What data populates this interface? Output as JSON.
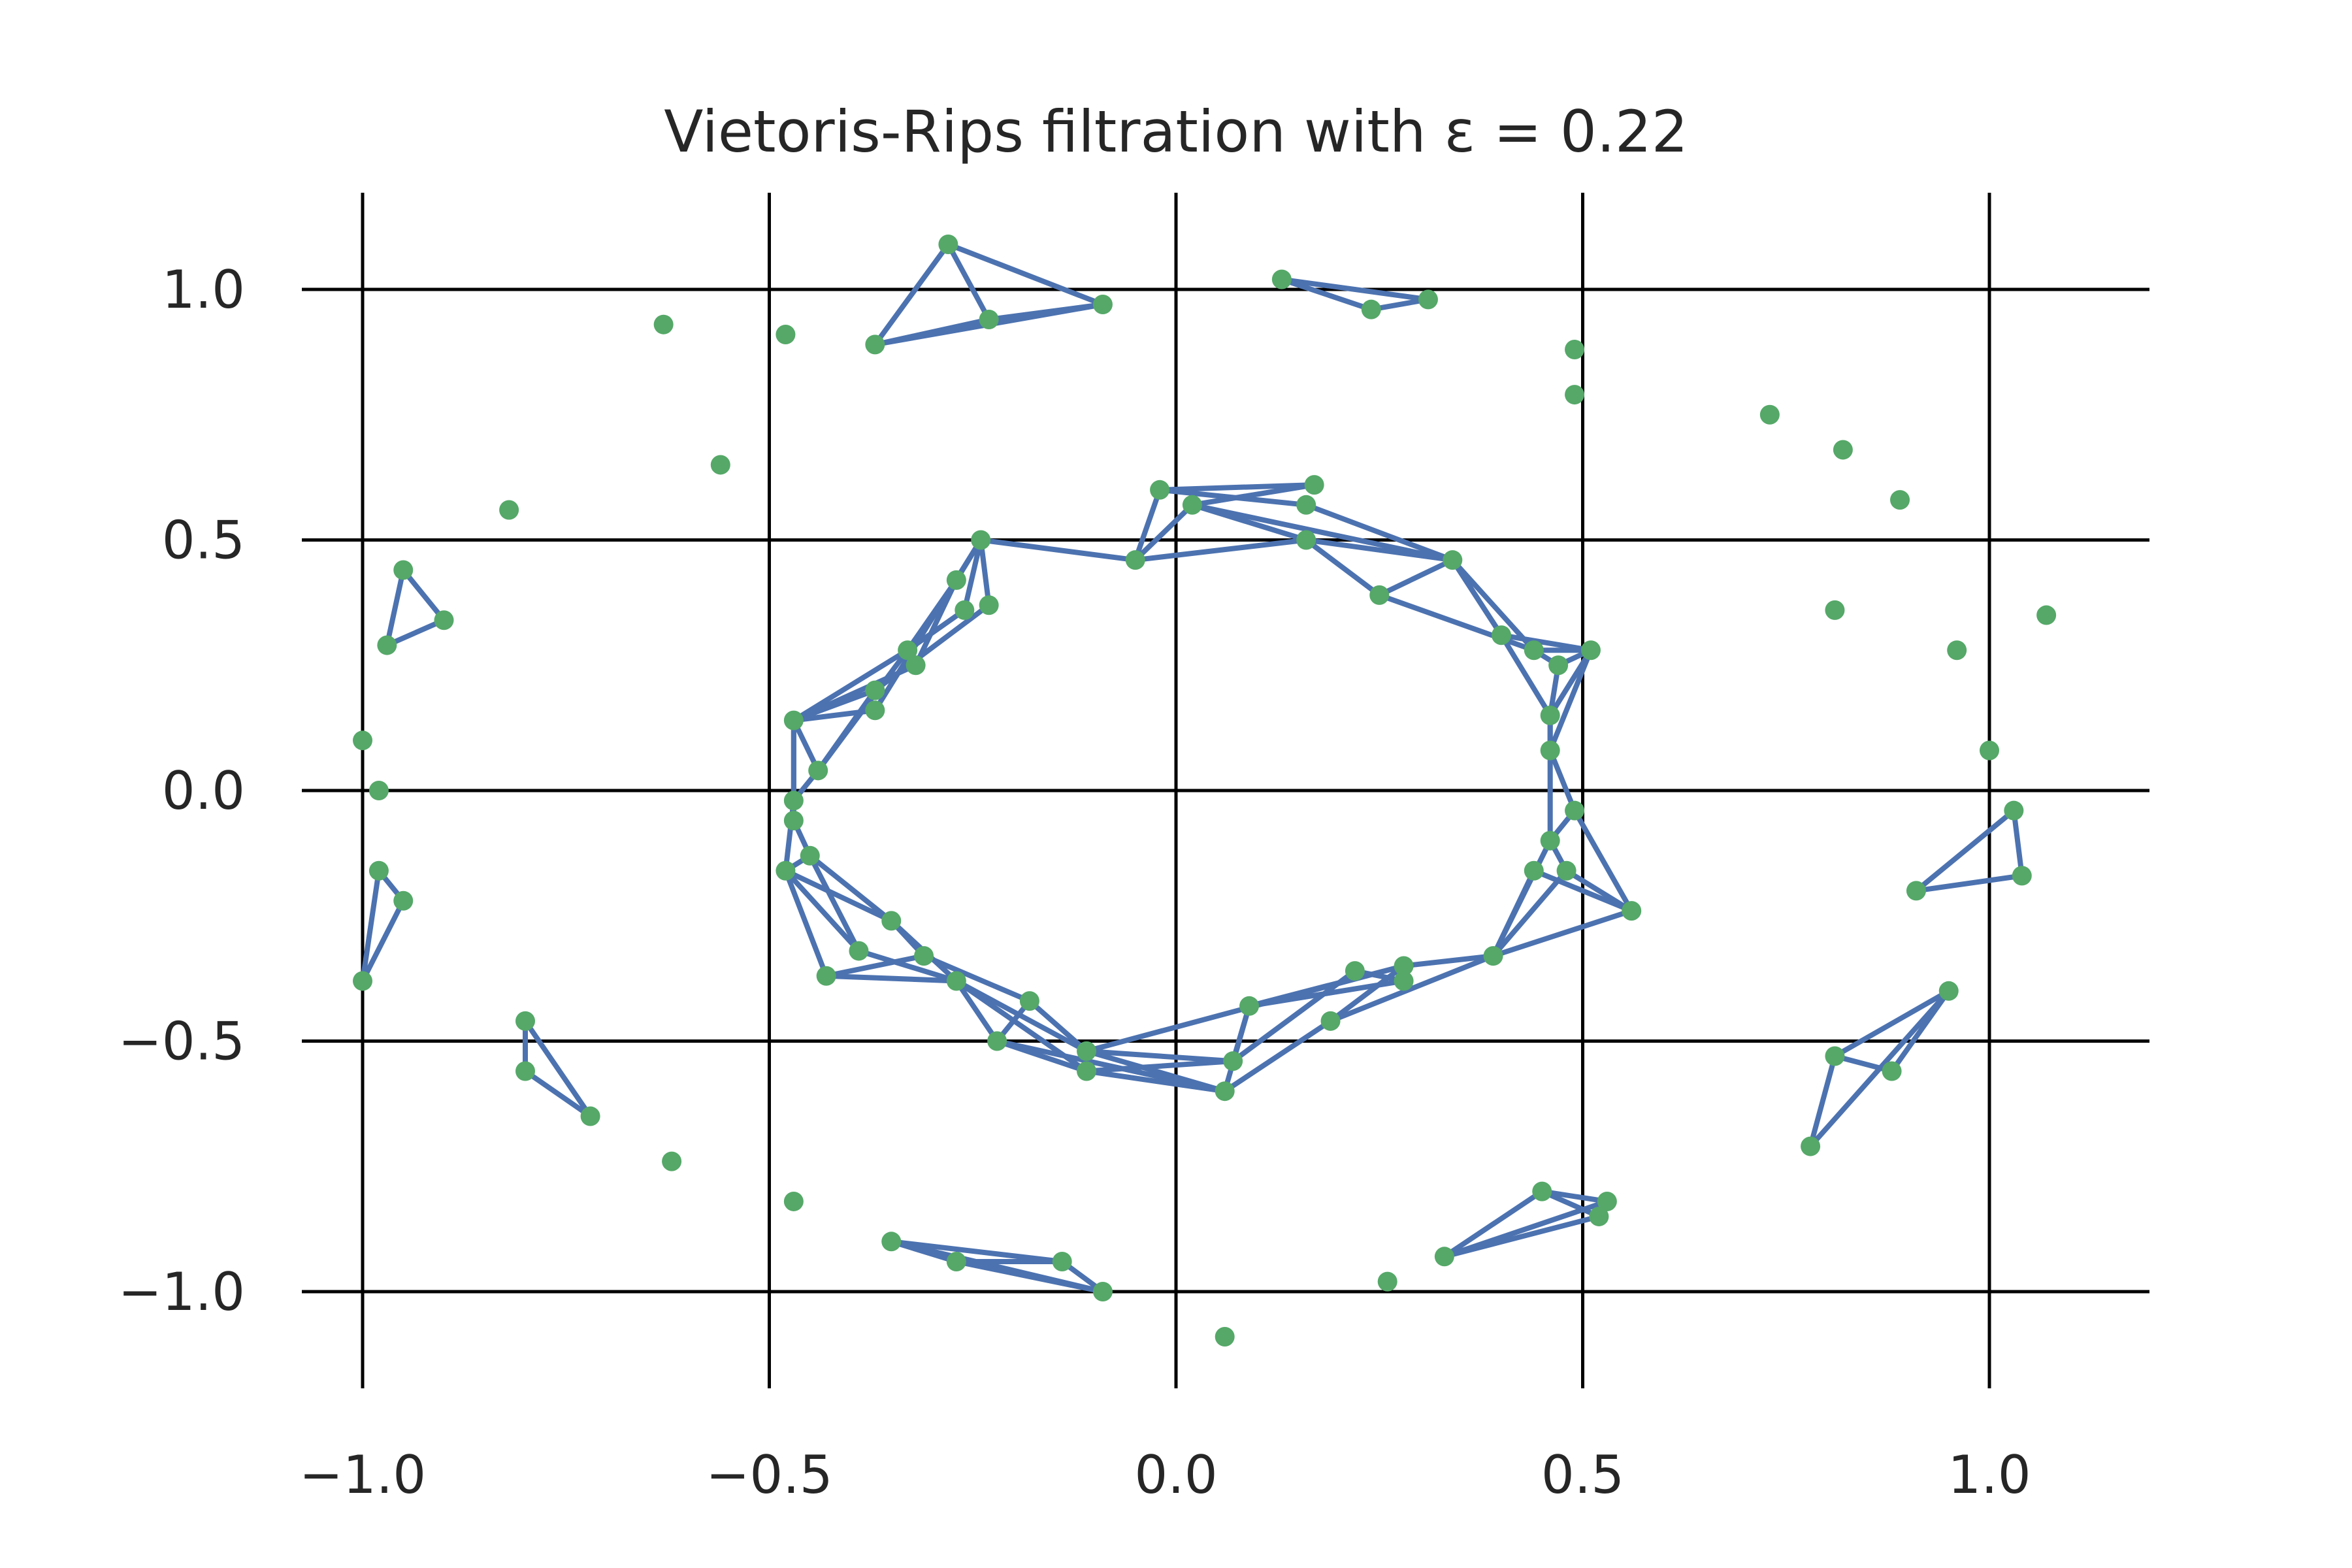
{
  "chart_data": {
    "type": "scatter",
    "title": "Vietoris-Rips filtration with ε = 0.22",
    "xlabel": "",
    "ylabel": "",
    "xlim": [
      -1.13,
      1.17
    ],
    "ylim": [
      -1.18,
      1.2
    ],
    "xticks": [
      -1.0,
      -0.5,
      0.0,
      0.5,
      1.0
    ],
    "xtick_labels": [
      "−1.0",
      "−0.5",
      "0.0",
      "0.5",
      "1.0"
    ],
    "yticks": [
      1.0,
      0.5,
      0.0,
      -0.5,
      -1.0
    ],
    "ytick_labels": [
      "1.0",
      "0.5",
      "0.0",
      "−0.5",
      "−1.0"
    ],
    "grid": true,
    "colors": {
      "points": "#55a868",
      "edges": "#4c72b0",
      "grid": "#000000",
      "text": "#262626"
    },
    "points": [
      [
        -0.63,
        0.93
      ],
      [
        -0.48,
        0.91
      ],
      [
        -0.56,
        0.65
      ],
      [
        -0.82,
        0.56
      ],
      [
        -0.28,
        1.09
      ],
      [
        -0.37,
        0.89
      ],
      [
        -0.23,
        0.94
      ],
      [
        -0.09,
        0.97
      ],
      [
        0.13,
        1.02
      ],
      [
        0.24,
        0.96
      ],
      [
        0.31,
        0.98
      ],
      [
        0.49,
        0.88
      ],
      [
        0.49,
        0.79
      ],
      [
        0.73,
        0.75
      ],
      [
        0.82,
        0.68
      ],
      [
        0.89,
        0.58
      ],
      [
        0.81,
        0.36
      ],
      [
        1.07,
        0.35
      ],
      [
        0.96,
        0.28
      ],
      [
        1.0,
        0.08
      ],
      [
        -0.95,
        0.44
      ],
      [
        -0.97,
        0.29
      ],
      [
        -0.9,
        0.34
      ],
      [
        -1.0,
        0.1
      ],
      [
        -0.98,
        0.0
      ],
      [
        -0.98,
        -0.16
      ],
      [
        -0.95,
        -0.22
      ],
      [
        -1.0,
        -0.38
      ],
      [
        -0.8,
        -0.46
      ],
      [
        -0.8,
        -0.56
      ],
      [
        -0.72,
        -0.65
      ],
      [
        -0.62,
        -0.74
      ],
      [
        -0.47,
        -0.82
      ],
      [
        -0.35,
        -0.9
      ],
      [
        -0.27,
        -0.94
      ],
      [
        -0.14,
        -0.94
      ],
      [
        -0.09,
        -1.0
      ],
      [
        0.06,
        -1.09
      ],
      [
        0.26,
        -0.98
      ],
      [
        0.33,
        -0.93
      ],
      [
        0.45,
        -0.8
      ],
      [
        0.52,
        -0.85
      ],
      [
        0.53,
        -0.82
      ],
      [
        0.78,
        -0.71
      ],
      [
        0.81,
        -0.53
      ],
      [
        0.88,
        -0.56
      ],
      [
        0.95,
        -0.4
      ],
      [
        1.03,
        -0.04
      ],
      [
        1.04,
        -0.17
      ],
      [
        0.91,
        -0.2
      ],
      [
        -0.02,
        0.6
      ],
      [
        0.02,
        0.57
      ],
      [
        0.17,
        0.61
      ],
      [
        0.16,
        0.57
      ],
      [
        0.16,
        0.5
      ],
      [
        -0.05,
        0.46
      ],
      [
        0.34,
        0.46
      ],
      [
        0.25,
        0.39
      ],
      [
        -0.24,
        0.5
      ],
      [
        -0.27,
        0.42
      ],
      [
        -0.26,
        0.36
      ],
      [
        -0.23,
        0.37
      ],
      [
        -0.33,
        0.28
      ],
      [
        -0.32,
        0.25
      ],
      [
        -0.37,
        0.2
      ],
      [
        -0.37,
        0.16
      ],
      [
        -0.47,
        0.14
      ],
      [
        -0.44,
        0.04
      ],
      [
        -0.47,
        -0.02
      ],
      [
        -0.47,
        -0.06
      ],
      [
        -0.45,
        -0.13
      ],
      [
        -0.48,
        -0.16
      ],
      [
        0.4,
        0.31
      ],
      [
        0.44,
        0.28
      ],
      [
        0.47,
        0.25
      ],
      [
        0.51,
        0.28
      ],
      [
        0.46,
        0.15
      ],
      [
        0.46,
        0.08
      ],
      [
        0.49,
        -0.04
      ],
      [
        0.46,
        -0.1
      ],
      [
        0.48,
        -0.16
      ],
      [
        0.44,
        -0.16
      ],
      [
        0.56,
        -0.24
      ],
      [
        0.39,
        -0.33
      ],
      [
        -0.35,
        -0.26
      ],
      [
        -0.39,
        -0.32
      ],
      [
        -0.31,
        -0.33
      ],
      [
        -0.43,
        -0.37
      ],
      [
        -0.27,
        -0.38
      ],
      [
        -0.18,
        -0.42
      ],
      [
        -0.22,
        -0.5
      ],
      [
        -0.11,
        -0.52
      ],
      [
        -0.11,
        -0.56
      ],
      [
        0.06,
        -0.6
      ],
      [
        0.07,
        -0.54
      ],
      [
        0.09,
        -0.43
      ],
      [
        0.19,
        -0.46
      ],
      [
        0.22,
        -0.36
      ],
      [
        0.28,
        -0.38
      ],
      [
        0.28,
        -0.35
      ]
    ],
    "edges": [
      [
        -0.28,
        1.09,
        -0.37,
        0.89
      ],
      [
        -0.28,
        1.09,
        -0.23,
        0.94
      ],
      [
        -0.28,
        1.09,
        -0.09,
        0.97
      ],
      [
        -0.37,
        0.89,
        -0.23,
        0.94
      ],
      [
        -0.37,
        0.89,
        -0.09,
        0.97
      ],
      [
        -0.23,
        0.94,
        -0.09,
        0.97
      ],
      [
        0.13,
        1.02,
        0.24,
        0.96
      ],
      [
        0.13,
        1.02,
        0.31,
        0.98
      ],
      [
        0.24,
        0.96,
        0.31,
        0.98
      ],
      [
        -0.95,
        0.44,
        -0.97,
        0.29
      ],
      [
        -0.95,
        0.44,
        -0.9,
        0.34
      ],
      [
        -0.97,
        0.29,
        -0.9,
        0.34
      ],
      [
        -0.98,
        -0.16,
        -1.0,
        -0.38
      ],
      [
        -0.95,
        -0.22,
        -1.0,
        -0.38
      ],
      [
        -0.98,
        -0.16,
        -0.95,
        -0.22
      ],
      [
        -0.8,
        -0.46,
        -0.8,
        -0.56
      ],
      [
        -0.8,
        -0.46,
        -0.72,
        -0.65
      ],
      [
        -0.8,
        -0.56,
        -0.72,
        -0.65
      ],
      [
        -0.35,
        -0.9,
        -0.27,
        -0.94
      ],
      [
        -0.35,
        -0.9,
        -0.14,
        -0.94
      ],
      [
        -0.35,
        -0.9,
        -0.09,
        -1.0
      ],
      [
        -0.27,
        -0.94,
        -0.14,
        -0.94
      ],
      [
        -0.27,
        -0.94,
        -0.09,
        -1.0
      ],
      [
        -0.14,
        -0.94,
        -0.09,
        -1.0
      ],
      [
        0.33,
        -0.93,
        0.45,
        -0.8
      ],
      [
        0.33,
        -0.93,
        0.52,
        -0.85
      ],
      [
        0.33,
        -0.93,
        0.53,
        -0.82
      ],
      [
        0.45,
        -0.8,
        0.52,
        -0.85
      ],
      [
        0.45,
        -0.8,
        0.53,
        -0.82
      ],
      [
        0.78,
        -0.71,
        0.81,
        -0.53
      ],
      [
        0.78,
        -0.71,
        0.95,
        -0.4
      ],
      [
        0.81,
        -0.53,
        0.88,
        -0.56
      ],
      [
        0.81,
        -0.53,
        0.95,
        -0.4
      ],
      [
        0.88,
        -0.56,
        0.95,
        -0.4
      ],
      [
        1.03,
        -0.04,
        1.04,
        -0.17
      ],
      [
        1.03,
        -0.04,
        0.91,
        -0.2
      ],
      [
        1.04,
        -0.17,
        0.91,
        -0.2
      ],
      [
        -0.02,
        0.6,
        0.17,
        0.61
      ],
      [
        -0.02,
        0.6,
        0.16,
        0.57
      ],
      [
        0.02,
        0.57,
        0.17,
        0.61
      ],
      [
        0.02,
        0.57,
        0.16,
        0.5
      ],
      [
        0.02,
        0.57,
        0.34,
        0.46
      ],
      [
        0.16,
        0.57,
        0.34,
        0.46
      ],
      [
        0.16,
        0.5,
        0.34,
        0.46
      ],
      [
        0.16,
        0.5,
        0.25,
        0.39
      ],
      [
        0.25,
        0.39,
        0.34,
        0.46
      ],
      [
        0.34,
        0.46,
        0.4,
        0.31
      ],
      [
        0.34,
        0.46,
        0.44,
        0.28
      ],
      [
        0.25,
        0.39,
        0.44,
        0.28
      ],
      [
        -0.05,
        0.46,
        -0.02,
        0.6
      ],
      [
        -0.05,
        0.46,
        0.02,
        0.57
      ],
      [
        -0.05,
        0.46,
        0.16,
        0.5
      ],
      [
        -0.24,
        0.5,
        -0.05,
        0.46
      ],
      [
        -0.24,
        0.5,
        -0.27,
        0.42
      ],
      [
        -0.24,
        0.5,
        -0.26,
        0.36
      ],
      [
        -0.24,
        0.5,
        -0.23,
        0.37
      ],
      [
        -0.27,
        0.42,
        -0.33,
        0.28
      ],
      [
        -0.27,
        0.42,
        -0.32,
        0.25
      ],
      [
        -0.26,
        0.36,
        -0.33,
        0.28
      ],
      [
        -0.23,
        0.37,
        -0.37,
        0.2
      ],
      [
        -0.24,
        0.5,
        -0.37,
        0.16
      ],
      [
        -0.33,
        0.28,
        -0.47,
        0.14
      ],
      [
        -0.32,
        0.25,
        -0.47,
        0.14
      ],
      [
        -0.37,
        0.2,
        -0.47,
        0.14
      ],
      [
        -0.37,
        0.16,
        -0.47,
        0.14
      ],
      [
        -0.37,
        0.2,
        -0.44,
        0.04
      ],
      [
        -0.33,
        0.28,
        -0.44,
        0.04
      ],
      [
        -0.47,
        0.14,
        -0.44,
        0.04
      ],
      [
        -0.47,
        0.14,
        -0.47,
        -0.02
      ],
      [
        -0.47,
        0.14,
        -0.47,
        -0.06
      ],
      [
        -0.44,
        0.04,
        -0.47,
        -0.02
      ],
      [
        -0.47,
        -0.02,
        -0.48,
        -0.16
      ],
      [
        -0.47,
        -0.06,
        -0.45,
        -0.13
      ],
      [
        -0.48,
        -0.16,
        -0.45,
        -0.13
      ],
      [
        -0.48,
        -0.16,
        -0.35,
        -0.26
      ],
      [
        -0.48,
        -0.16,
        -0.39,
        -0.32
      ],
      [
        -0.48,
        -0.16,
        -0.43,
        -0.37
      ],
      [
        -0.45,
        -0.13,
        -0.35,
        -0.26
      ],
      [
        -0.45,
        -0.13,
        -0.39,
        -0.32
      ],
      [
        -0.43,
        -0.37,
        -0.31,
        -0.33
      ],
      [
        -0.43,
        -0.37,
        -0.27,
        -0.38
      ],
      [
        -0.39,
        -0.32,
        -0.27,
        -0.38
      ],
      [
        -0.35,
        -0.26,
        -0.27,
        -0.38
      ],
      [
        -0.35,
        -0.26,
        -0.31,
        -0.33
      ],
      [
        -0.31,
        -0.33,
        -0.18,
        -0.42
      ],
      [
        -0.27,
        -0.38,
        -0.22,
        -0.5
      ],
      [
        -0.27,
        -0.38,
        -0.11,
        -0.52
      ],
      [
        -0.27,
        -0.38,
        -0.11,
        -0.56
      ],
      [
        -0.22,
        -0.5,
        -0.18,
        -0.42
      ],
      [
        -0.18,
        -0.42,
        -0.11,
        -0.52
      ],
      [
        -0.22,
        -0.5,
        -0.11,
        -0.56
      ],
      [
        -0.11,
        -0.52,
        0.06,
        -0.6
      ],
      [
        -0.11,
        -0.56,
        0.07,
        -0.54
      ],
      [
        -0.11,
        -0.52,
        0.07,
        -0.54
      ],
      [
        -0.11,
        -0.56,
        0.06,
        -0.6
      ],
      [
        -0.22,
        -0.5,
        0.06,
        -0.6
      ],
      [
        -0.11,
        -0.52,
        0.28,
        -0.35
      ],
      [
        0.06,
        -0.6,
        0.09,
        -0.43
      ],
      [
        0.07,
        -0.54,
        0.09,
        -0.43
      ],
      [
        0.06,
        -0.6,
        0.19,
        -0.46
      ],
      [
        0.07,
        -0.54,
        0.22,
        -0.36
      ],
      [
        0.09,
        -0.43,
        0.28,
        -0.38
      ],
      [
        0.09,
        -0.43,
        0.28,
        -0.35
      ],
      [
        0.19,
        -0.46,
        0.28,
        -0.35
      ],
      [
        0.19,
        -0.46,
        0.39,
        -0.33
      ],
      [
        0.22,
        -0.36,
        0.28,
        -0.38
      ],
      [
        0.28,
        -0.35,
        0.39,
        -0.33
      ],
      [
        0.39,
        -0.33,
        0.44,
        -0.16
      ],
      [
        0.39,
        -0.33,
        0.48,
        -0.16
      ],
      [
        0.39,
        -0.33,
        0.46,
        -0.1
      ],
      [
        0.39,
        -0.33,
        0.56,
        -0.24
      ],
      [
        0.44,
        -0.16,
        0.56,
        -0.24
      ],
      [
        0.46,
        -0.1,
        0.49,
        -0.04
      ],
      [
        0.46,
        -0.1,
        0.48,
        -0.16
      ],
      [
        0.48,
        -0.16,
        0.56,
        -0.24
      ],
      [
        0.49,
        -0.04,
        0.56,
        -0.24
      ],
      [
        0.46,
        0.08,
        0.49,
        -0.04
      ],
      [
        0.46,
        0.15,
        0.46,
        -0.1
      ],
      [
        0.46,
        0.08,
        0.46,
        0.15
      ],
      [
        0.46,
        0.15,
        0.47,
        0.25
      ],
      [
        0.46,
        0.08,
        0.51,
        0.28
      ],
      [
        0.46,
        0.15,
        0.51,
        0.28
      ],
      [
        0.44,
        0.28,
        0.47,
        0.25
      ],
      [
        0.44,
        0.28,
        0.51,
        0.28
      ],
      [
        0.47,
        0.25,
        0.51,
        0.28
      ],
      [
        0.4,
        0.31,
        0.51,
        0.28
      ],
      [
        0.4,
        0.31,
        0.46,
        0.15
      ],
      [
        0.34,
        0.46,
        0.4,
        0.31
      ]
    ]
  }
}
